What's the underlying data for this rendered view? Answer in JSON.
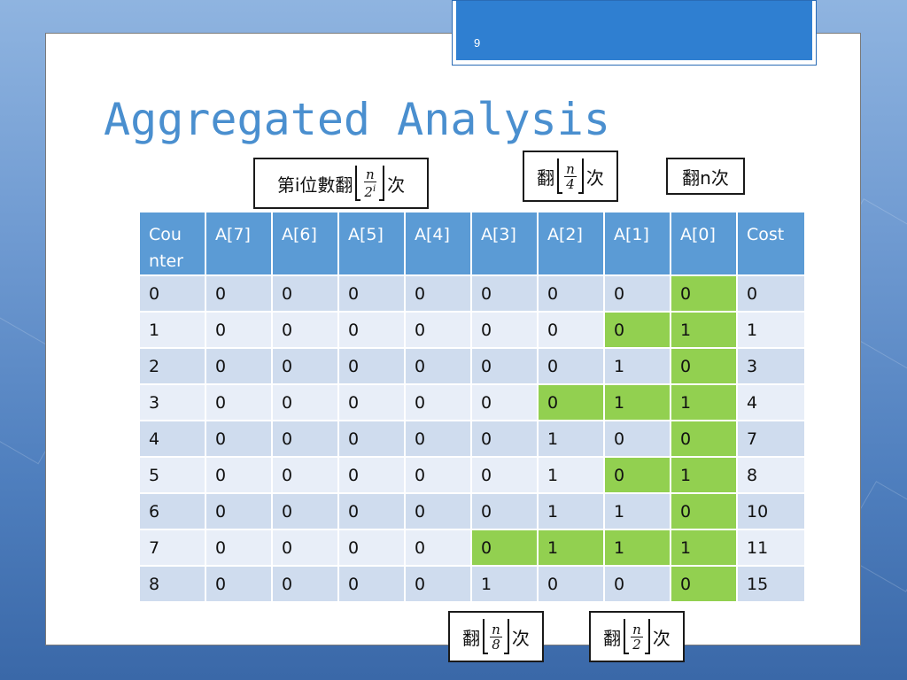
{
  "slide": {
    "page_number": "9",
    "title": "Aggregated Analysis"
  },
  "labels": {
    "top_left": {
      "prefix": "第i位數翻",
      "numerator": "n",
      "denominator_base": "2",
      "denominator_exp": "i",
      "suffix": "次"
    },
    "top_middle": {
      "prefix": "翻",
      "numerator": "n",
      "denominator": "4",
      "suffix": "次"
    },
    "top_right": {
      "text": "翻n次"
    },
    "bottom_left": {
      "prefix": "翻",
      "numerator": "n",
      "denominator": "8",
      "suffix": "次"
    },
    "bottom_right": {
      "prefix": "翻",
      "numerator": "n",
      "denominator": "2",
      "suffix": "次"
    }
  },
  "table": {
    "headers": [
      "Cou\nnter",
      "A[7]",
      "A[6]",
      "A[5]",
      "A[4]",
      "A[3]",
      "A[2]",
      "A[1]",
      "A[0]",
      "Cost"
    ],
    "rows": [
      [
        "0",
        "0",
        "0",
        "0",
        "0",
        "0",
        "0",
        "0",
        "0",
        "0"
      ],
      [
        "1",
        "0",
        "0",
        "0",
        "0",
        "0",
        "0",
        "0",
        "1",
        "1"
      ],
      [
        "2",
        "0",
        "0",
        "0",
        "0",
        "0",
        "0",
        "1",
        "0",
        "3"
      ],
      [
        "3",
        "0",
        "0",
        "0",
        "0",
        "0",
        "0",
        "1",
        "1",
        "4"
      ],
      [
        "4",
        "0",
        "0",
        "0",
        "0",
        "0",
        "1",
        "0",
        "0",
        "7"
      ],
      [
        "5",
        "0",
        "0",
        "0",
        "0",
        "0",
        "1",
        "0",
        "1",
        "8"
      ],
      [
        "6",
        "0",
        "0",
        "0",
        "0",
        "0",
        "1",
        "1",
        "0",
        "10"
      ],
      [
        "7",
        "0",
        "0",
        "0",
        "0",
        "0",
        "1",
        "1",
        "1",
        "11"
      ],
      [
        "8",
        "0",
        "0",
        "0",
        "0",
        "1",
        "0",
        "0",
        "0",
        "15"
      ]
    ],
    "highlighted_cells": [
      [
        0,
        8
      ],
      [
        1,
        7
      ],
      [
        1,
        8
      ],
      [
        2,
        8
      ],
      [
        3,
        6
      ],
      [
        3,
        7
      ],
      [
        3,
        8
      ],
      [
        4,
        8
      ],
      [
        5,
        7
      ],
      [
        5,
        8
      ],
      [
        6,
        8
      ],
      [
        7,
        5
      ],
      [
        7,
        6
      ],
      [
        7,
        7
      ],
      [
        7,
        8
      ],
      [
        8,
        8
      ]
    ],
    "colors": {
      "header": "#5b9bd5",
      "row_dark": "#cfdcee",
      "row_light": "#e8eef8",
      "highlight": "#92d050"
    }
  },
  "theme": {
    "title_color": "#4a8fcf",
    "tab_color": "#2f7fd1"
  }
}
